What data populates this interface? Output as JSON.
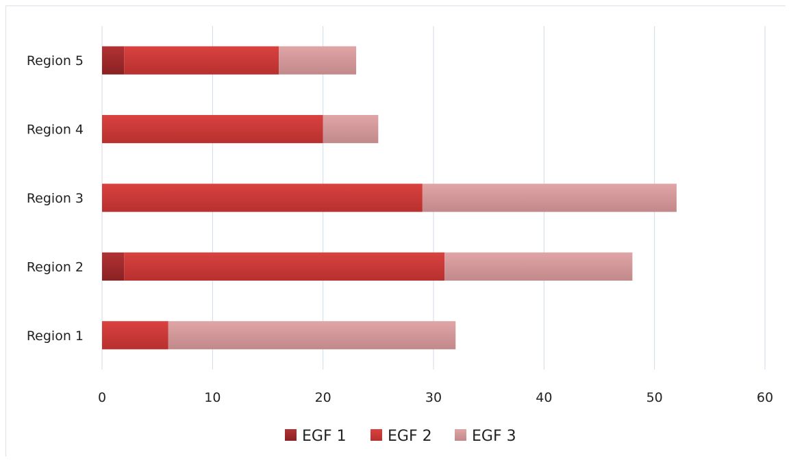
{
  "chart_data": {
    "type": "bar",
    "orientation": "horizontal",
    "stacked": true,
    "categories": [
      "Region 1",
      "Region 2",
      "Region 3",
      "Region 4",
      "Region 5"
    ],
    "series": [
      {
        "name": "EGF 1",
        "values": [
          0,
          2,
          0,
          0,
          2
        ],
        "color": "#9e2a2b"
      },
      {
        "name": "EGF 2",
        "values": [
          6,
          29,
          29,
          20,
          14
        ],
        "color": "#d23a3c"
      },
      {
        "name": "EGF 3",
        "values": [
          26,
          17,
          23,
          5,
          7
        ],
        "color": "#d99a9b"
      }
    ],
    "xlim": [
      0,
      60
    ],
    "xticks": [
      "0",
      "10",
      "20",
      "30",
      "40",
      "50",
      "60"
    ],
    "xtick_values": [
      0,
      10,
      20,
      30,
      40,
      50,
      60
    ],
    "grid": "vertical",
    "legend_position": "bottom",
    "title": "",
    "xlabel": "",
    "ylabel": ""
  }
}
